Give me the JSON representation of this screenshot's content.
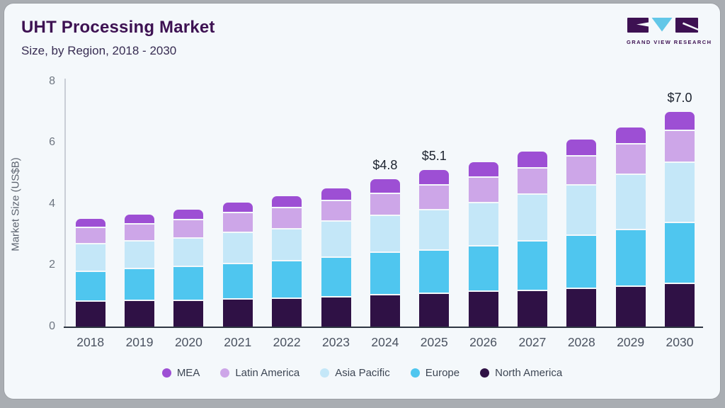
{
  "header": {
    "title": "UHT Processing Market",
    "subtitle": "Size, by Region, 2018 - 2030",
    "logo_text": "GRAND VIEW RESEARCH"
  },
  "chart_data": {
    "type": "bar",
    "stacked": true,
    "title": "UHT Processing Market Size, by Region, 2018 - 2030",
    "categories": [
      "2018",
      "2019",
      "2020",
      "2021",
      "2022",
      "2023",
      "2024",
      "2025",
      "2026",
      "2027",
      "2028",
      "2029",
      "2030"
    ],
    "series": [
      {
        "name": "North America",
        "color": "#2f1145",
        "values": [
          0.8,
          0.84,
          0.84,
          0.88,
          0.91,
          0.95,
          1.02,
          1.05,
          1.12,
          1.16,
          1.23,
          1.29,
          1.38
        ]
      },
      {
        "name": "Europe",
        "color": "#4fc6ef",
        "values": [
          0.98,
          1.03,
          1.1,
          1.15,
          1.21,
          1.28,
          1.37,
          1.43,
          1.5,
          1.6,
          1.72,
          1.84,
          1.98
        ]
      },
      {
        "name": "Asia Pacific",
        "color": "#c4e7f8",
        "values": [
          0.9,
          0.91,
          0.92,
          1.02,
          1.05,
          1.18,
          1.21,
          1.3,
          1.39,
          1.53,
          1.64,
          1.82,
          1.98
        ]
      },
      {
        "name": "Latin America",
        "color": "#cda6e8",
        "values": [
          0.52,
          0.54,
          0.6,
          0.65,
          0.69,
          0.67,
          0.71,
          0.82,
          0.83,
          0.87,
          0.96,
          0.99,
          1.04
        ]
      },
      {
        "name": "MEA",
        "color": "#9d4fd4",
        "values": [
          0.3,
          0.33,
          0.34,
          0.35,
          0.39,
          0.42,
          0.49,
          0.5,
          0.51,
          0.54,
          0.55,
          0.56,
          0.62
        ]
      }
    ],
    "totals": [
      3.5,
      3.65,
      3.8,
      4.05,
      4.25,
      4.5,
      4.8,
      5.1,
      5.35,
      5.7,
      6.1,
      6.5,
      7.0
    ],
    "annotations": [
      {
        "category": "2024",
        "label": "$4.8"
      },
      {
        "category": "2025",
        "label": "$5.1"
      },
      {
        "category": "2030",
        "label": "$7.0"
      }
    ],
    "xlabel": "",
    "ylabel": "Market Size (US$B)",
    "ylim": [
      0,
      8
    ],
    "yticks": [
      "0",
      "2",
      "4",
      "6",
      "8"
    ],
    "grid": false,
    "legend_position": "bottom",
    "legend_order": [
      "MEA",
      "Latin America",
      "Asia Pacific",
      "Europe",
      "North America"
    ]
  },
  "colors": {
    "card_background": "#f4f8fb",
    "outer_background": "#a9adb2",
    "title_text": "#3d1152",
    "subtitle_text": "#372c52",
    "axis_text": "#5d6470",
    "tick_text": "#6e7681",
    "x_axis_line": "#2e3642",
    "y_axis_line": "#c9ced6",
    "annotation_text": "#1b222e",
    "legend_text": "#3d4654",
    "logo_purple": "#3d1152",
    "logo_blue": "#62c7e8"
  }
}
